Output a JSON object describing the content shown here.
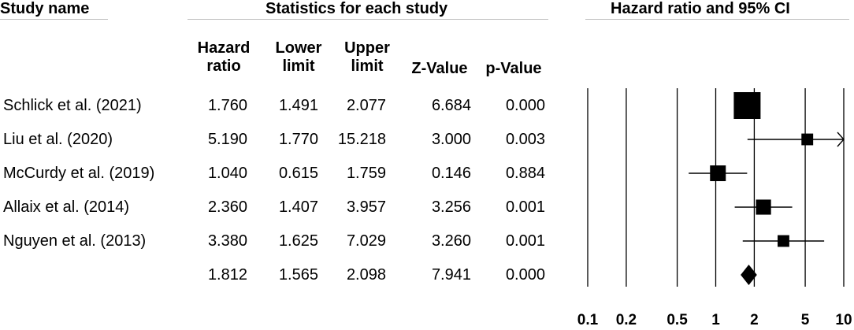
{
  "headers": {
    "study_name": "Study name",
    "statistics": "Statistics for each study",
    "forest": "Hazard ratio and 95% CI"
  },
  "columns": {
    "hr": [
      "Hazard",
      "ratio"
    ],
    "lower": [
      "Lower",
      "limit"
    ],
    "upper": [
      "Upper",
      "limit"
    ],
    "z": "Z-Value",
    "p": "p-Value"
  },
  "rows": [
    {
      "study": "Schlick et al. (2021)",
      "hr": "1.760",
      "lower": "1.491",
      "upper": "2.077",
      "z": "6.684",
      "p": "0.000"
    },
    {
      "study": "Liu et al. (2020)",
      "hr": "5.190",
      "lower": "1.770",
      "upper": "15.218",
      "z": "3.000",
      "p": "0.003"
    },
    {
      "study": "McCurdy et al. (2019)",
      "hr": "1.040",
      "lower": "0.615",
      "upper": "1.759",
      "z": "0.146",
      "p": "0.884"
    },
    {
      "study": "Allaix et al. (2014)",
      "hr": "2.360",
      "lower": "1.407",
      "upper": "3.957",
      "z": "3.256",
      "p": "0.001"
    },
    {
      "study": "Nguyen et al. (2013)",
      "hr": "3.380",
      "lower": "1.625",
      "upper": "7.029",
      "z": "3.260",
      "p": "0.001"
    },
    {
      "study": "",
      "hr": "1.812",
      "lower": "1.565",
      "upper": "2.098",
      "z": "7.941",
      "p": "0.000"
    }
  ],
  "chart_data": {
    "type": "forest",
    "scale": "log",
    "xlim": [
      0.1,
      10
    ],
    "ticks": [
      0.1,
      0.2,
      0.5,
      1,
      2,
      5,
      10
    ],
    "tick_labels": [
      "0.1",
      "0.2",
      "0.5",
      "1",
      "2",
      "5",
      "10"
    ],
    "studies": [
      {
        "hr": 1.76,
        "lower": 1.491,
        "upper": 2.077,
        "weight": 1.0
      },
      {
        "hr": 5.19,
        "lower": 1.77,
        "upper": 15.218,
        "weight": 0.1
      },
      {
        "hr": 1.04,
        "lower": 0.615,
        "upper": 1.759,
        "weight": 0.25
      },
      {
        "hr": 2.36,
        "lower": 1.407,
        "upper": 3.957,
        "weight": 0.22
      },
      {
        "hr": 3.38,
        "lower": 1.625,
        "upper": 7.029,
        "weight": 0.1
      }
    ],
    "summary": {
      "hr": 1.812,
      "lower": 1.565,
      "upper": 2.098
    },
    "colors": {
      "marks": "#000000",
      "lines": "#000000"
    }
  }
}
